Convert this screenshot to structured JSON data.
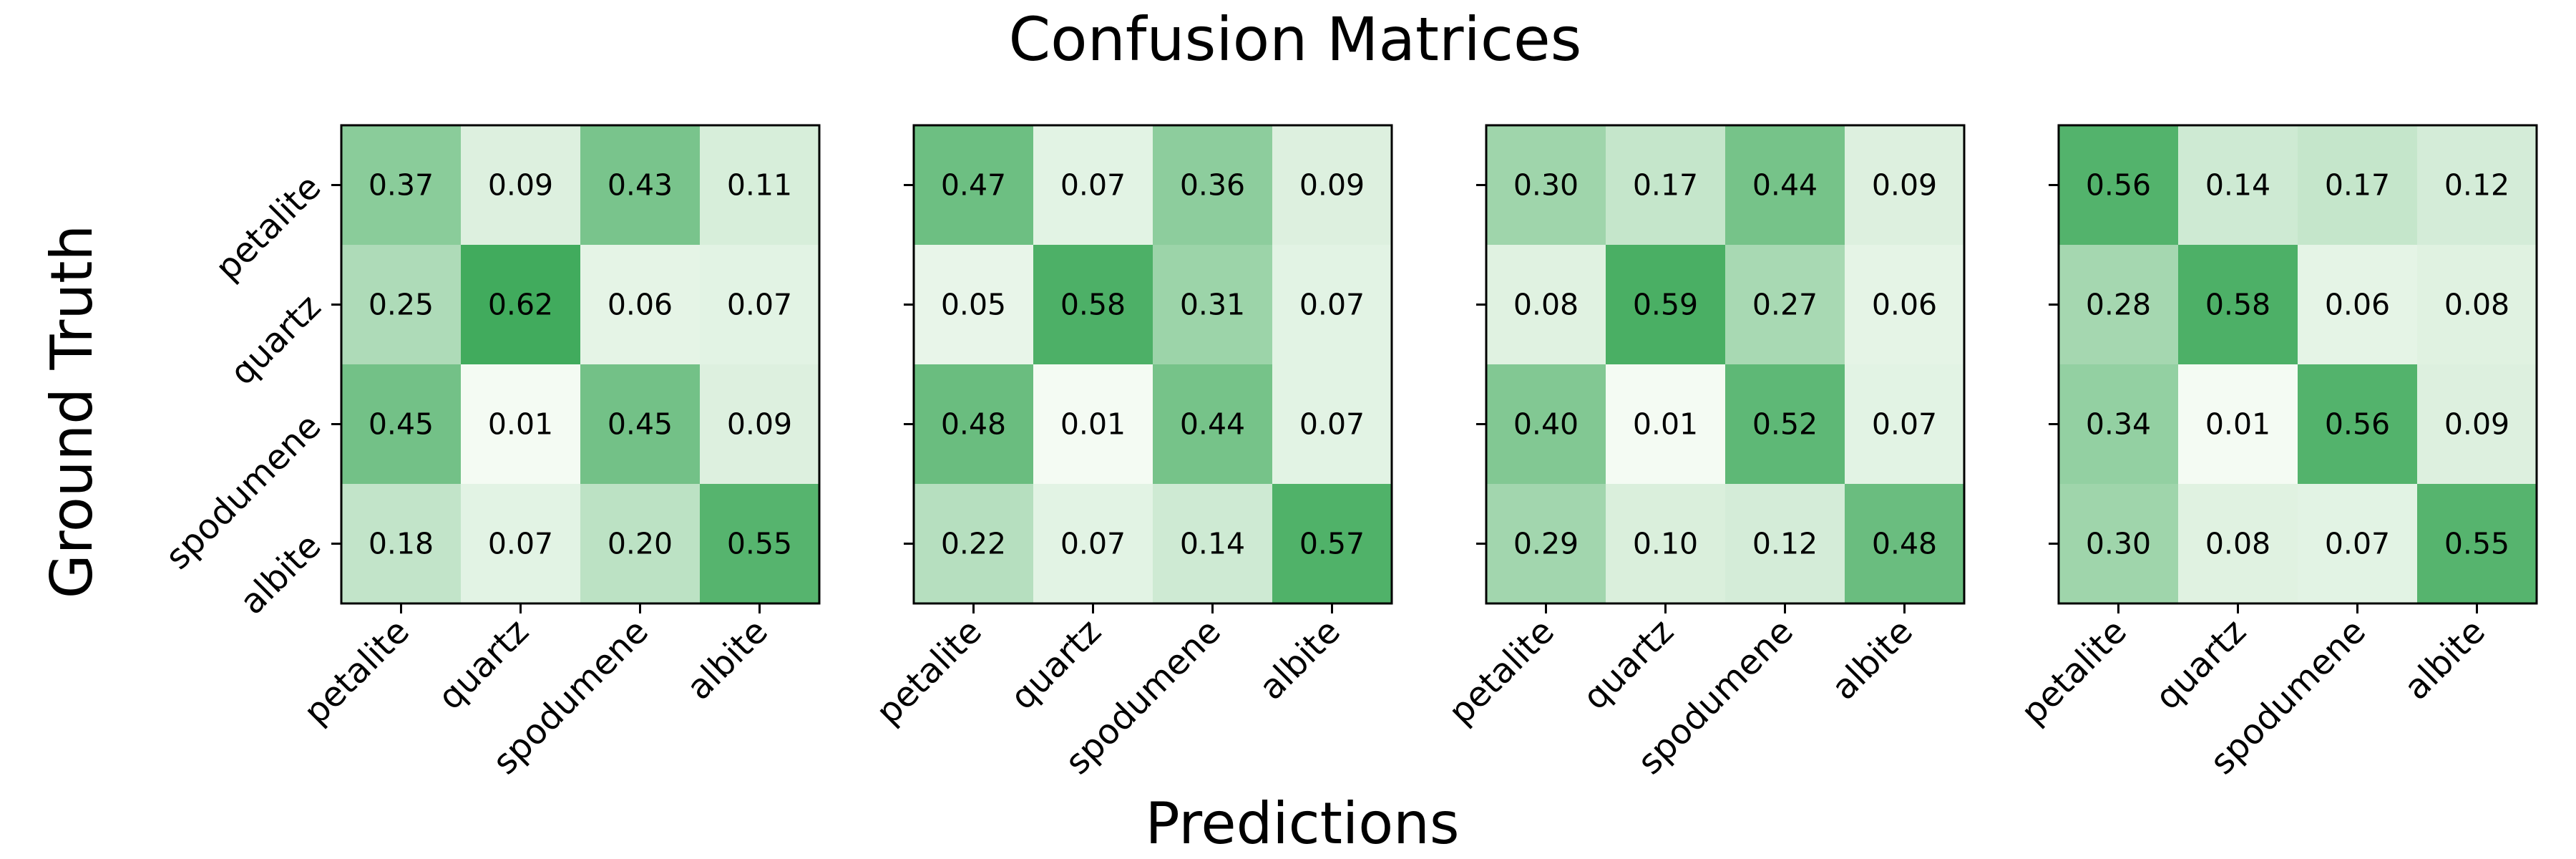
{
  "figure": {
    "title": "Confusion Matrices",
    "xlabel": "Predictions",
    "ylabel": "Ground Truth"
  },
  "chart_data": {
    "type": "heatmap",
    "classes": [
      "petalite",
      "quartz",
      "spodumene",
      "albite"
    ],
    "colormap": "Greens",
    "color_low": "#f7fcf5",
    "color_high": "#41ab5d",
    "value_range": [
      0,
      1
    ],
    "matrices": [
      {
        "values": [
          [
            0.37,
            0.09,
            0.43,
            0.11
          ],
          [
            0.25,
            0.62,
            0.06,
            0.07
          ],
          [
            0.45,
            0.01,
            0.45,
            0.09
          ],
          [
            0.18,
            0.07,
            0.2,
            0.55
          ]
        ]
      },
      {
        "values": [
          [
            0.47,
            0.07,
            0.36,
            0.09
          ],
          [
            0.05,
            0.58,
            0.31,
            0.07
          ],
          [
            0.48,
            0.01,
            0.44,
            0.07
          ],
          [
            0.22,
            0.07,
            0.14,
            0.57
          ]
        ]
      },
      {
        "values": [
          [
            0.3,
            0.17,
            0.44,
            0.09
          ],
          [
            0.08,
            0.59,
            0.27,
            0.06
          ],
          [
            0.4,
            0.01,
            0.52,
            0.07
          ],
          [
            0.29,
            0.1,
            0.12,
            0.48
          ]
        ]
      },
      {
        "values": [
          [
            0.56,
            0.14,
            0.17,
            0.12
          ],
          [
            0.28,
            0.58,
            0.06,
            0.08
          ],
          [
            0.34,
            0.01,
            0.56,
            0.09
          ],
          [
            0.3,
            0.08,
            0.07,
            0.55
          ]
        ]
      }
    ]
  }
}
